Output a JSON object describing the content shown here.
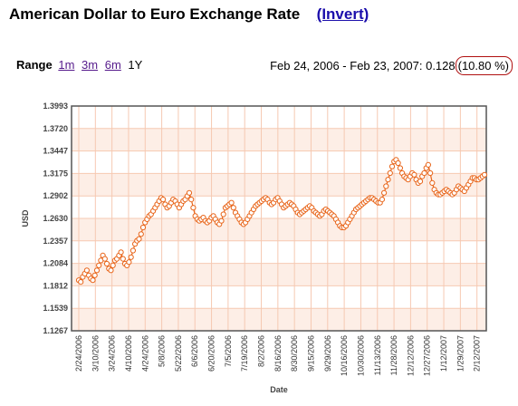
{
  "header": {
    "title": "American Dollar to Euro Exchange Rate",
    "invert_label": "(Invert)"
  },
  "range": {
    "label": "Range",
    "options": [
      "1m",
      "3m",
      "6m"
    ],
    "current": "1Y"
  },
  "summary": {
    "text": "Feb 24, 2006 - Feb 23, 2007: 0.128",
    "percent": "(10.80 %)"
  },
  "colors": {
    "series": "#e8651a",
    "plot_band": "#fdeee6",
    "grid": "#f6c9b2",
    "badge_border": "#b01010"
  },
  "chart_data": {
    "type": "line",
    "title": "",
    "xlabel": "Date",
    "ylabel": "USD",
    "ylim": [
      1.1267,
      1.3993
    ],
    "yticks": [
      "1.3993",
      "1.3720",
      "1.3447",
      "1.3175",
      "1.2902",
      "1.2630",
      "1.2357",
      "1.2084",
      "1.1812",
      "1.1539",
      "1.1267"
    ],
    "xticks": [
      "2/24/2006",
      "3/10/2006",
      "3/24/2006",
      "4/10/2006",
      "4/24/2006",
      "5/8/2006",
      "5/22/2006",
      "6/6/2006",
      "6/20/2006",
      "7/5/2006",
      "7/19/2006",
      "8/2/2006",
      "8/16/2006",
      "8/30/2006",
      "9/15/2006",
      "9/29/2006",
      "10/16/2006",
      "10/30/2006",
      "11/13/2006",
      "11/28/2006",
      "12/12/2006",
      "12/27/2006",
      "1/12/2007",
      "1/29/2007",
      "2/12/2007"
    ],
    "grid": true,
    "legend": "none",
    "series": [
      {
        "values": [
          1.188,
          1.186,
          1.192,
          1.196,
          1.2,
          1.194,
          1.19,
          1.188,
          1.194,
          1.2,
          1.206,
          1.212,
          1.218,
          1.214,
          1.208,
          1.202,
          1.2,
          1.206,
          1.212,
          1.214,
          1.218,
          1.222,
          1.214,
          1.208,
          1.206,
          1.21,
          1.216,
          1.224,
          1.232,
          1.236,
          1.238,
          1.244,
          1.252,
          1.258,
          1.262,
          1.266,
          1.268,
          1.272,
          1.276,
          1.28,
          1.284,
          1.288,
          1.286,
          1.28,
          1.276,
          1.278,
          1.282,
          1.286,
          1.284,
          1.28,
          1.276,
          1.28,
          1.284,
          1.286,
          1.29,
          1.294,
          1.286,
          1.276,
          1.266,
          1.262,
          1.26,
          1.262,
          1.264,
          1.26,
          1.258,
          1.26,
          1.264,
          1.266,
          1.262,
          1.258,
          1.256,
          1.26,
          1.268,
          1.276,
          1.278,
          1.28,
          1.282,
          1.276,
          1.27,
          1.266,
          1.262,
          1.258,
          1.256,
          1.258,
          1.262,
          1.266,
          1.27,
          1.274,
          1.278,
          1.28,
          1.282,
          1.284,
          1.286,
          1.288,
          1.286,
          1.282,
          1.28,
          1.282,
          1.286,
          1.288,
          1.284,
          1.28,
          1.276,
          1.278,
          1.28,
          1.282,
          1.28,
          1.278,
          1.274,
          1.27,
          1.268,
          1.27,
          1.272,
          1.274,
          1.276,
          1.278,
          1.276,
          1.272,
          1.27,
          1.268,
          1.266,
          1.268,
          1.272,
          1.274,
          1.272,
          1.27,
          1.268,
          1.266,
          1.262,
          1.258,
          1.254,
          1.252,
          1.252,
          1.254,
          1.258,
          1.262,
          1.266,
          1.27,
          1.274,
          1.276,
          1.278,
          1.28,
          1.282,
          1.284,
          1.286,
          1.288,
          1.288,
          1.286,
          1.284,
          1.282,
          1.282,
          1.286,
          1.294,
          1.302,
          1.31,
          1.318,
          1.326,
          1.332,
          1.334,
          1.33,
          1.324,
          1.318,
          1.314,
          1.312,
          1.31,
          1.314,
          1.318,
          1.316,
          1.31,
          1.306,
          1.308,
          1.314,
          1.318,
          1.324,
          1.328,
          1.318,
          1.306,
          1.298,
          1.294,
          1.292,
          1.292,
          1.294,
          1.296,
          1.298,
          1.296,
          1.294,
          1.292,
          1.294,
          1.298,
          1.302,
          1.3,
          1.298,
          1.296,
          1.3,
          1.304,
          1.308,
          1.312,
          1.312,
          1.31,
          1.31,
          1.312,
          1.314,
          1.316
        ]
      }
    ]
  }
}
